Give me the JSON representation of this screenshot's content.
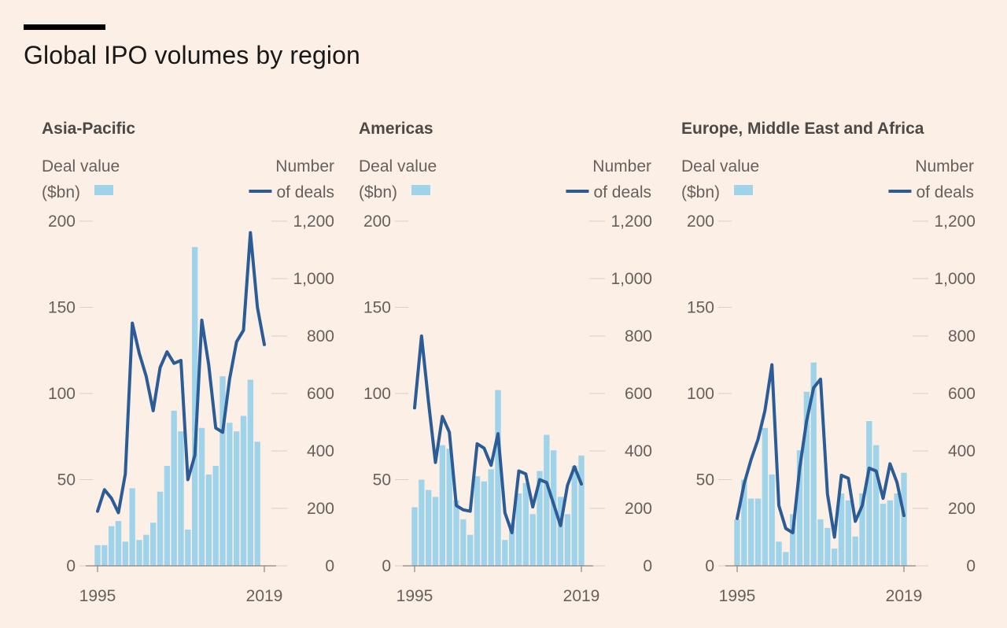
{
  "title": "Global IPO volumes by region",
  "legend": {
    "bars_line1": "Deal value",
    "bars_line2": "($bn)",
    "line_line1": "Number",
    "line_line2": "of deals"
  },
  "colors": {
    "bars": "#9fd3ea",
    "line": "#2c5c96",
    "background": "#fcefe6",
    "gridline": "#d9cfc6"
  },
  "chart_data": [
    {
      "type": "bar",
      "title": "Asia-Pacific",
      "x": [
        1995,
        1996,
        1997,
        1998,
        1999,
        2000,
        2001,
        2002,
        2003,
        2004,
        2005,
        2006,
        2007,
        2008,
        2009,
        2010,
        2011,
        2012,
        2013,
        2014,
        2015,
        2016,
        2017,
        2018,
        2019
      ],
      "x_ticks": [
        "1995",
        "2019"
      ],
      "y_left_ticks": [
        "0",
        "50",
        "100",
        "150",
        "200"
      ],
      "y_right_ticks": [
        "0",
        "200",
        "400",
        "600",
        "800",
        "1,000",
        "1,200"
      ],
      "y_left_lim": [
        0,
        200
      ],
      "y_right_lim": [
        0,
        1200
      ],
      "series": [
        {
          "name": "Deal value ($bn)",
          "axis": "left",
          "type": "bar",
          "values": [
            12,
            12,
            23,
            26,
            14,
            45,
            15,
            18,
            25,
            43,
            58,
            90,
            78,
            21,
            185,
            80,
            53,
            58,
            110,
            83,
            78,
            87,
            108,
            72,
            0
          ]
        },
        {
          "name": "Number of deals",
          "axis": "right",
          "type": "line",
          "values": [
            190,
            265,
            235,
            185,
            320,
            845,
            740,
            660,
            540,
            690,
            745,
            705,
            715,
            300,
            385,
            855,
            700,
            480,
            465,
            650,
            780,
            820,
            1160,
            900,
            770
          ]
        }
      ]
    },
    {
      "type": "bar",
      "title": "Americas",
      "x": [
        1995,
        1996,
        1997,
        1998,
        1999,
        2000,
        2001,
        2002,
        2003,
        2004,
        2005,
        2006,
        2007,
        2008,
        2009,
        2010,
        2011,
        2012,
        2013,
        2014,
        2015,
        2016,
        2017,
        2018,
        2019
      ],
      "x_ticks": [
        "1995",
        "2019"
      ],
      "y_left_ticks": [
        "0",
        "50",
        "100",
        "150",
        "200"
      ],
      "y_right_ticks": [
        "0",
        "200",
        "400",
        "600",
        "800",
        "1,000",
        "1,200"
      ],
      "y_left_lim": [
        0,
        200
      ],
      "y_right_lim": [
        0,
        1200
      ],
      "series": [
        {
          "name": "Deal value ($bn)",
          "axis": "left",
          "type": "bar",
          "values": [
            34,
            50,
            44,
            40,
            70,
            68,
            38,
            27,
            18,
            52,
            49,
            56,
            102,
            15,
            25,
            42,
            48,
            30,
            55,
            76,
            67,
            40,
            30,
            58,
            64
          ]
        },
        {
          "name": "Number of deals",
          "axis": "right",
          "type": "line",
          "values": [
            550,
            800,
            570,
            360,
            520,
            465,
            210,
            195,
            190,
            425,
            410,
            350,
            460,
            185,
            115,
            330,
            320,
            205,
            300,
            290,
            215,
            140,
            280,
            345,
            285
          ]
        }
      ]
    },
    {
      "type": "bar",
      "title": "Europe, Middle East and Africa",
      "x": [
        1995,
        1996,
        1997,
        1998,
        1999,
        2000,
        2001,
        2002,
        2003,
        2004,
        2005,
        2006,
        2007,
        2008,
        2009,
        2010,
        2011,
        2012,
        2013,
        2014,
        2015,
        2016,
        2017,
        2018,
        2019
      ],
      "x_ticks": [
        "1995",
        "2019"
      ],
      "y_left_ticks": [
        "0",
        "50",
        "100",
        "150",
        "200"
      ],
      "y_right_ticks": [
        "0",
        "200",
        "400",
        "600",
        "800",
        "1,000",
        "1,200"
      ],
      "y_left_lim": [
        0,
        200
      ],
      "y_right_lim": [
        0,
        1200
      ],
      "series": [
        {
          "name": "Deal value ($bn)",
          "axis": "left",
          "type": "bar",
          "values": [
            27,
            50,
            39,
            39,
            80,
            53,
            14,
            8,
            30,
            67,
            101,
            118,
            27,
            22,
            10,
            42,
            38,
            17,
            42,
            84,
            70,
            36,
            38,
            42,
            54
          ]
        },
        {
          "name": "Number of deals",
          "axis": "right",
          "type": "line",
          "values": [
            165,
            285,
            370,
            440,
            540,
            700,
            210,
            130,
            115,
            340,
            505,
            620,
            650,
            250,
            100,
            315,
            305,
            155,
            210,
            340,
            330,
            235,
            355,
            290,
            175
          ]
        }
      ]
    }
  ]
}
